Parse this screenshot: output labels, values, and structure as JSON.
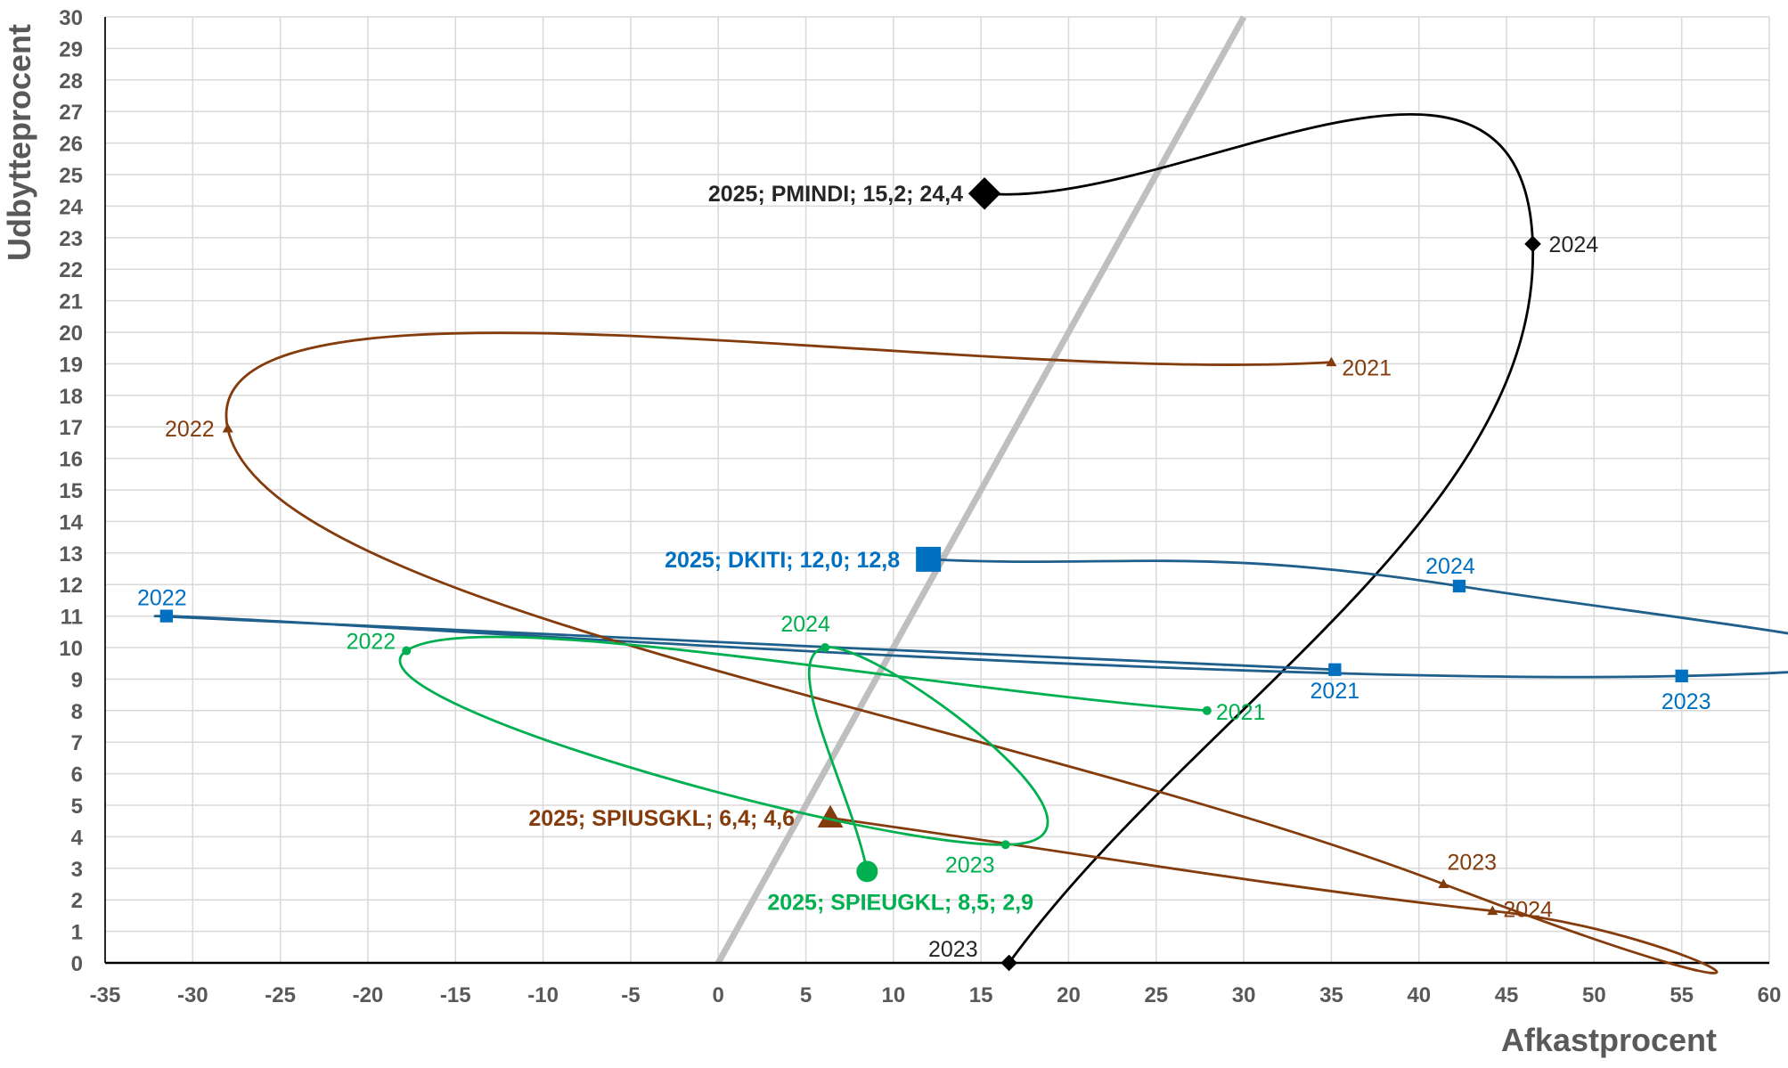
{
  "chart_data": {
    "type": "scatter",
    "xlabel": "Afkastprocent",
    "ylabel": "Udbytteprocent",
    "xlim": [
      -35,
      60
    ],
    "ylim": [
      0,
      30
    ],
    "x_ticks": [
      -35,
      -30,
      -25,
      -20,
      -15,
      -10,
      -5,
      0,
      5,
      10,
      15,
      20,
      25,
      30,
      35,
      40,
      45,
      50,
      55,
      60
    ],
    "y_ticks": [
      0,
      1,
      2,
      3,
      4,
      5,
      6,
      7,
      8,
      9,
      10,
      11,
      12,
      13,
      14,
      15,
      16,
      17,
      18,
      19,
      20,
      21,
      22,
      23,
      24,
      25,
      26,
      27,
      28,
      29,
      30
    ],
    "grid": true,
    "reference_line": {
      "points": [
        [
          0,
          0
        ],
        [
          30,
          30
        ]
      ],
      "color": "#bfbfbf"
    },
    "series": [
      {
        "name": "PMINDI",
        "color": "#000000",
        "marker": "diamond",
        "points": [
          {
            "year": "2023",
            "x": 16.6,
            "y": 0
          },
          {
            "year": "2024",
            "x": 46.5,
            "y": 22.8
          },
          {
            "year": "2025",
            "x": 15.2,
            "y": 24.4
          }
        ],
        "final_label": "2025; PMINDI; 15,2; 24,4"
      },
      {
        "name": "DKITI",
        "color": "#0070c0",
        "line_color": "#1f5f8b",
        "marker": "square",
        "points": [
          {
            "year": "2021",
            "x": 35.2,
            "y": 9.3
          },
          {
            "year": "2022",
            "x": -31.5,
            "y": 11.0
          },
          {
            "year": "2023",
            "x": 55.0,
            "y": 9.1
          },
          {
            "year": "2024",
            "x": 42.3,
            "y": 11.95
          },
          {
            "year": "2025",
            "x": 12.0,
            "y": 12.8
          }
        ],
        "final_label": "2025; DKITI; 12,0; 12,8"
      },
      {
        "name": "SPIUSGKL",
        "color": "#843c0c",
        "marker": "triangle",
        "points": [
          {
            "year": "2021",
            "x": 35.0,
            "y": 19.05
          },
          {
            "year": "2022",
            "x": -28.0,
            "y": 16.95
          },
          {
            "year": "2023",
            "x": 41.4,
            "y": 2.5
          },
          {
            "year": "2024",
            "x": 44.2,
            "y": 1.65
          },
          {
            "year": "2025",
            "x": 6.4,
            "y": 4.6
          }
        ],
        "final_label": "2025; SPIUSGKL; 6,4; 4,6"
      },
      {
        "name": "SPIEUGKL",
        "color": "#00b050",
        "marker": "circle",
        "points": [
          {
            "year": "2021",
            "x": 27.9,
            "y": 8.0
          },
          {
            "year": "2022",
            "x": -17.8,
            "y": 9.9
          },
          {
            "year": "2023",
            "x": 16.4,
            "y": 3.75
          },
          {
            "year": "2024",
            "x": 6.1,
            "y": 10.0
          },
          {
            "year": "2025",
            "x": 8.5,
            "y": 2.9
          }
        ],
        "final_label": "2025; SPIEUGKL; 8,5; 2,9"
      }
    ]
  }
}
